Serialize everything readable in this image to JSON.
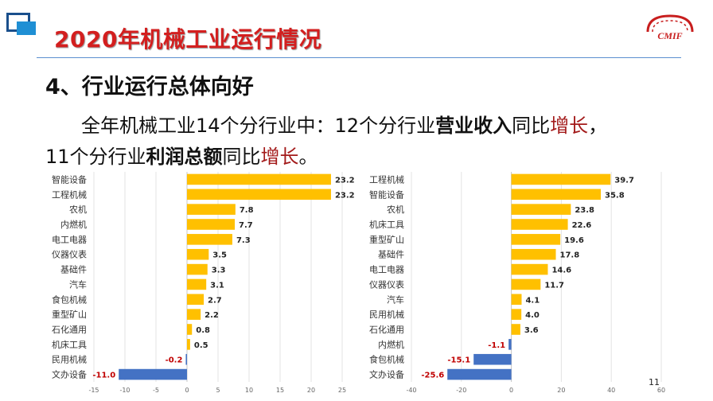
{
  "slide": {
    "title": "2020年机械工业运行情况",
    "section_heading": "4、行业运行总体向好",
    "body_line1": {
      "p1": "全年机械工业14个分行业中：12个分行业",
      "b1": "营业收入",
      "p2": "同比",
      "r1": "增长",
      "p3": "，"
    },
    "body_line2": {
      "p1": "11个分行业",
      "b1": "利润总额",
      "p2": "同比",
      "r1": "增长",
      "p3": "。"
    },
    "page_number": "11",
    "brand_logo_text": "CMIF"
  },
  "colors": {
    "positive": "#FFC000",
    "negative": "#4472C4",
    "negative_label": "#C00000",
    "title": "#D31F1F"
  },
  "chart_data": [
    {
      "type": "bar",
      "orientation": "horizontal",
      "categories": [
        "智能设备",
        "工程机械",
        "农机",
        "内燃机",
        "电工电器",
        "仪器仪表",
        "基础件",
        "汽车",
        "食包机械",
        "重型矿山",
        "石化通用",
        "机床工具",
        "民用机械",
        "文办设备"
      ],
      "values": [
        23.2,
        23.2,
        7.8,
        7.7,
        7.3,
        3.5,
        3.3,
        3.1,
        2.7,
        2.2,
        0.8,
        0.5,
        -0.2,
        -11.0
      ],
      "labels": [
        "23.2",
        "23.2",
        "7.8",
        "7.7",
        "7.3",
        "3.5",
        "3.3",
        "3.1",
        "2.7",
        "2.2",
        "0.8",
        "0.5",
        "-0.2",
        "-11.0"
      ],
      "xlim": [
        -15,
        25
      ],
      "xticks": [
        -15,
        -10,
        -5,
        0,
        5,
        10,
        15,
        20,
        25
      ],
      "grid": true
    },
    {
      "type": "bar",
      "orientation": "horizontal",
      "categories": [
        "工程机械",
        "智能设备",
        "农机",
        "机床工具",
        "重型矿山",
        "基础件",
        "电工电器",
        "仪器仪表",
        "汽车",
        "民用机械",
        "石化通用",
        "内燃机",
        "食包机械",
        "文办设备"
      ],
      "values": [
        39.7,
        35.8,
        23.8,
        22.6,
        19.6,
        17.8,
        14.6,
        11.7,
        4.1,
        4.0,
        3.6,
        -1.1,
        -15.1,
        -25.6
      ],
      "labels": [
        "39.7",
        "35.8",
        "23.8",
        "22.6",
        "19.6",
        "17.8",
        "14.6",
        "11.7",
        "4.1",
        "4.0",
        "3.6",
        "-1.1",
        "-15.1",
        "-25.6"
      ],
      "xlim": [
        -40,
        60
      ],
      "xticks": [
        -40,
        -20,
        0,
        20,
        40,
        60
      ],
      "grid": true
    }
  ]
}
